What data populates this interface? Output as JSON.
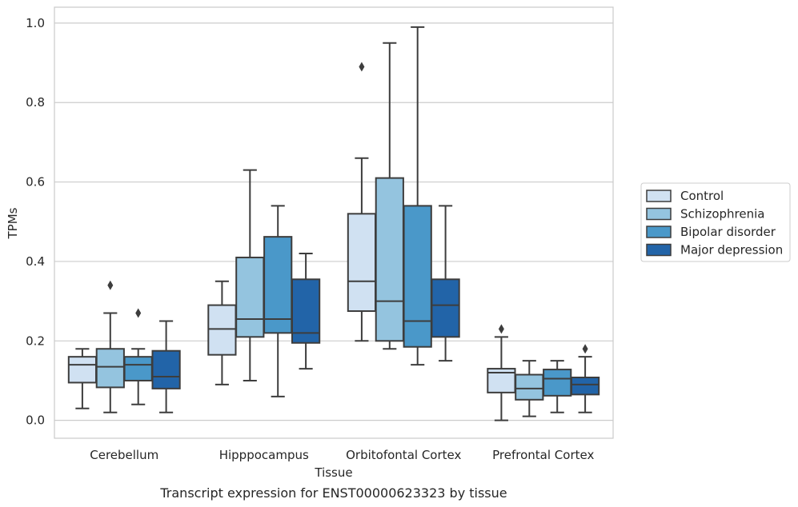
{
  "caption": "Transcript expression for ENST00000623323 by tissue",
  "chart_data": {
    "type": "box",
    "xlabel": "Tissue",
    "ylabel": "TPMs",
    "ylim": [
      -0.045,
      1.04
    ],
    "yticks": [
      "0.0",
      "0.2",
      "0.4",
      "0.6",
      "0.8",
      "1.0"
    ],
    "grid": true,
    "legend_position": "right",
    "categories": [
      "Cerebellum",
      "Hipppocampus",
      "Orbitofontal Cortex",
      "Prefrontal Cortex"
    ],
    "series": [
      {
        "name": "Control",
        "color": "#d0e1f2",
        "boxes": [
          {
            "min": 0.03,
            "q1": 0.095,
            "median": 0.14,
            "q3": 0.16,
            "max": 0.18,
            "outliers": []
          },
          {
            "min": 0.09,
            "q1": 0.165,
            "median": 0.23,
            "q3": 0.29,
            "max": 0.35,
            "outliers": []
          },
          {
            "min": 0.2,
            "q1": 0.275,
            "median": 0.35,
            "q3": 0.52,
            "max": 0.66,
            "outliers": [
              0.89
            ]
          },
          {
            "min": 0.0,
            "q1": 0.07,
            "median": 0.12,
            "q3": 0.13,
            "max": 0.21,
            "outliers": [
              0.23
            ]
          }
        ]
      },
      {
        "name": "Schizophrenia",
        "color": "#94c4df",
        "boxes": [
          {
            "min": 0.02,
            "q1": 0.083,
            "median": 0.135,
            "q3": 0.18,
            "max": 0.27,
            "outliers": [
              0.34
            ]
          },
          {
            "min": 0.1,
            "q1": 0.21,
            "median": 0.255,
            "q3": 0.41,
            "max": 0.63,
            "outliers": []
          },
          {
            "min": 0.18,
            "q1": 0.2,
            "median": 0.3,
            "q3": 0.61,
            "max": 0.95,
            "outliers": []
          },
          {
            "min": 0.01,
            "q1": 0.052,
            "median": 0.08,
            "q3": 0.115,
            "max": 0.15,
            "outliers": []
          }
        ]
      },
      {
        "name": "Bipolar disorder",
        "color": "#4a98c9",
        "boxes": [
          {
            "min": 0.04,
            "q1": 0.1,
            "median": 0.14,
            "q3": 0.16,
            "max": 0.18,
            "outliers": [
              0.27
            ]
          },
          {
            "min": 0.06,
            "q1": 0.22,
            "median": 0.255,
            "q3": 0.462,
            "max": 0.54,
            "outliers": []
          },
          {
            "min": 0.14,
            "q1": 0.185,
            "median": 0.25,
            "q3": 0.54,
            "max": 0.99,
            "outliers": []
          },
          {
            "min": 0.02,
            "q1": 0.062,
            "median": 0.105,
            "q3": 0.128,
            "max": 0.15,
            "outliers": []
          }
        ]
      },
      {
        "name": "Major depression",
        "color": "#2264a8",
        "boxes": [
          {
            "min": 0.02,
            "q1": 0.08,
            "median": 0.11,
            "q3": 0.175,
            "max": 0.25,
            "outliers": []
          },
          {
            "min": 0.13,
            "q1": 0.195,
            "median": 0.22,
            "q3": 0.355,
            "max": 0.42,
            "outliers": []
          },
          {
            "min": 0.15,
            "q1": 0.21,
            "median": 0.29,
            "q3": 0.355,
            "max": 0.54,
            "outliers": []
          },
          {
            "min": 0.02,
            "q1": 0.065,
            "median": 0.09,
            "q3": 0.108,
            "max": 0.16,
            "outliers": [
              0.18
            ]
          }
        ]
      }
    ]
  }
}
